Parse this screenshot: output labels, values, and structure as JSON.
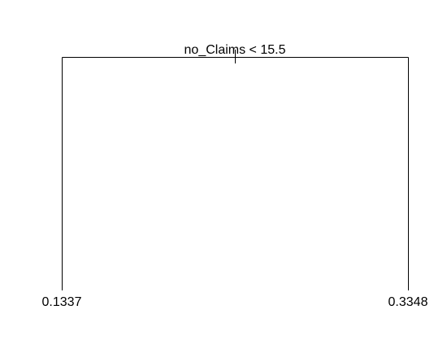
{
  "tree": {
    "split": {
      "label": "no_Claims < 15.5"
    },
    "leaves": [
      {
        "value": "0.1337"
      },
      {
        "value": "0.3348"
      }
    ],
    "line_color": "#000000",
    "background": "#ffffff"
  }
}
